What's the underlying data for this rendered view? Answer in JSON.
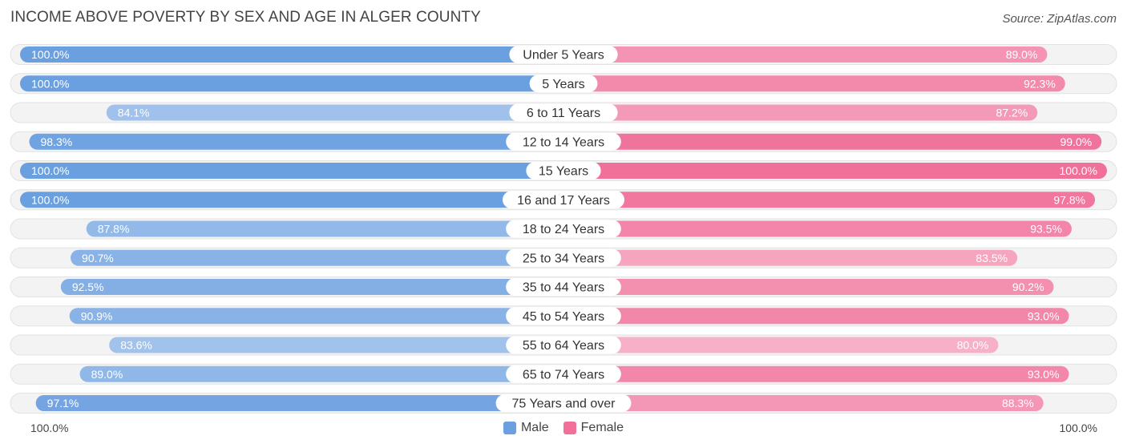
{
  "chart_data": {
    "type": "bar",
    "title": "INCOME ABOVE POVERTY BY SEX AND AGE IN ALGER COUNTY",
    "source": "Source: ZipAtlas.com",
    "categories": [
      "Under 5 Years",
      "5 Years",
      "6 to 11 Years",
      "12 to 14 Years",
      "15 Years",
      "16 and 17 Years",
      "18 to 24 Years",
      "25 to 34 Years",
      "35 to 44 Years",
      "45 to 54 Years",
      "55 to 64 Years",
      "65 to 74 Years",
      "75 Years and over"
    ],
    "series": [
      {
        "name": "Male",
        "color": "#6a9fe0",
        "values": [
          100.0,
          100.0,
          84.1,
          98.3,
          100.0,
          100.0,
          87.8,
          90.7,
          92.5,
          90.9,
          83.6,
          89.0,
          97.1
        ],
        "labels": [
          "100.0%",
          "100.0%",
          "84.1%",
          "98.3%",
          "100.0%",
          "100.0%",
          "87.8%",
          "90.7%",
          "92.5%",
          "90.9%",
          "83.6%",
          "89.0%",
          "97.1%"
        ]
      },
      {
        "name": "Female",
        "color": "#f0709a",
        "values": [
          89.0,
          92.3,
          87.2,
          99.0,
          100.0,
          97.8,
          93.5,
          83.5,
          90.2,
          93.0,
          80.0,
          93.0,
          88.3
        ],
        "labels": [
          "89.0%",
          "92.3%",
          "87.2%",
          "99.0%",
          "100.0%",
          "97.8%",
          "93.5%",
          "83.5%",
          "90.2%",
          "93.0%",
          "80.0%",
          "93.0%",
          "88.3%"
        ]
      }
    ],
    "xlim": [
      0,
      100
    ],
    "axis_left_label": "100.0%",
    "axis_right_label": "100.0%",
    "legend_position": "bottom-center"
  }
}
